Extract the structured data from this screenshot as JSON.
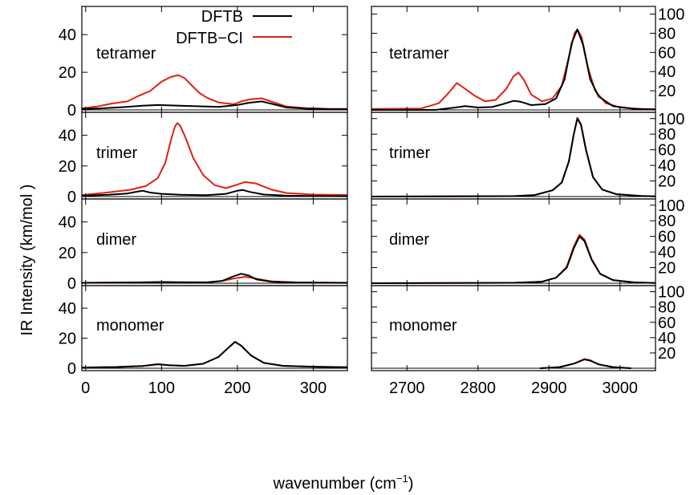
{
  "figure": {
    "ylabel": "IR  Intensity    (km/mol )",
    "xlabel": "wavenumber (cm",
    "xlabel_sup": "−1",
    "xlabel_close": ")"
  },
  "legend": {
    "placement": "top-left panel, top-right",
    "entries": [
      {
        "label": "DFTB",
        "color": "#000000"
      },
      {
        "label": "DFTB−CI",
        "color": "#dd2211"
      }
    ]
  },
  "chart_data": {
    "type": "line",
    "layout": "4 rows × 2 columns (shared x within column)",
    "series_names": [
      "DFTB",
      "DFTB−CI"
    ],
    "colors": {
      "DFTB": "#000000",
      "DFTB−CI": "#dd2211"
    },
    "left": {
      "xlim": [
        -5,
        345
      ],
      "xticks": [
        0,
        100,
        200,
        300
      ],
      "ylim": [
        0,
        55
      ],
      "yticks": [
        0,
        20,
        40
      ],
      "tick_side": "left"
    },
    "right": {
      "xlim": [
        2650,
        3050
      ],
      "xticks": [
        2700,
        2800,
        2900,
        3000
      ],
      "ylim": [
        0,
        108
      ],
      "yticks": [
        20,
        40,
        60,
        80,
        100
      ],
      "tick_side": "right"
    },
    "panels": [
      {
        "label": "tetramer",
        "left": {
          "DFTB": [
            [
              -5,
              0.5
            ],
            [
              20,
              0.8
            ],
            [
              50,
              1.5
            ],
            [
              75,
              2.2
            ],
            [
              95,
              2.6
            ],
            [
              120,
              2.3
            ],
            [
              150,
              1.9
            ],
            [
              175,
              1.6
            ],
            [
              200,
              2.6
            ],
            [
              215,
              3.8
            ],
            [
              232,
              4.5
            ],
            [
              248,
              3.0
            ],
            [
              265,
              1.3
            ],
            [
              290,
              0.7
            ],
            [
              320,
              0.4
            ],
            [
              345,
              0.3
            ]
          ],
          "DFTB−CI": [
            [
              -5,
              0.8
            ],
            [
              15,
              1.8
            ],
            [
              35,
              3.4
            ],
            [
              55,
              4.5
            ],
            [
              70,
              7.5
            ],
            [
              85,
              10.0
            ],
            [
              100,
              15.0
            ],
            [
              112,
              17.5
            ],
            [
              122,
              18.5
            ],
            [
              130,
              17.0
            ],
            [
              140,
              13.0
            ],
            [
              150,
              9.0
            ],
            [
              160,
              6.5
            ],
            [
              175,
              4.0
            ],
            [
              195,
              3.0
            ],
            [
              205,
              4.5
            ],
            [
              215,
              5.5
            ],
            [
              232,
              6.2
            ],
            [
              248,
              4.0
            ],
            [
              265,
              1.8
            ],
            [
              290,
              1.0
            ],
            [
              320,
              0.6
            ],
            [
              345,
              0.5
            ]
          ]
        },
        "right": {
          "DFTB": [
            [
              2650,
              0
            ],
            [
              2740,
              0
            ],
            [
              2768,
              2.5
            ],
            [
              2782,
              4.0
            ],
            [
              2800,
              2.5
            ],
            [
              2820,
              3.0
            ],
            [
              2835,
              6.0
            ],
            [
              2850,
              9.5
            ],
            [
              2860,
              8.5
            ],
            [
              2875,
              5.0
            ],
            [
              2895,
              6.0
            ],
            [
              2910,
              12.0
            ],
            [
              2922,
              32.0
            ],
            [
              2932,
              70.0
            ],
            [
              2940,
              84.0
            ],
            [
              2948,
              68.0
            ],
            [
              2958,
              32.0
            ],
            [
              2970,
              14.0
            ],
            [
              2990,
              4.0
            ],
            [
              3020,
              1.0
            ],
            [
              3050,
              0.3
            ]
          ],
          "DFTB−CI": [
            [
              2650,
              1.0
            ],
            [
              2720,
              1.5
            ],
            [
              2745,
              7.0
            ],
            [
              2760,
              19.0
            ],
            [
              2770,
              28.0
            ],
            [
              2782,
              22.0
            ],
            [
              2795,
              15.0
            ],
            [
              2810,
              9.0
            ],
            [
              2825,
              10.5
            ],
            [
              2840,
              22.0
            ],
            [
              2850,
              35.0
            ],
            [
              2857,
              39.0
            ],
            [
              2865,
              31.0
            ],
            [
              2875,
              16.0
            ],
            [
              2890,
              9.0
            ],
            [
              2905,
              12.0
            ],
            [
              2918,
              25.0
            ],
            [
              2928,
              55.0
            ],
            [
              2936,
              80.0
            ],
            [
              2940,
              84.0
            ],
            [
              2946,
              76.0
            ],
            [
              2955,
              44.0
            ],
            [
              2965,
              20.0
            ],
            [
              2980,
              7.0
            ],
            [
              3000,
              2.5
            ],
            [
              3030,
              1.0
            ],
            [
              3050,
              0.8
            ]
          ]
        }
      },
      {
        "label": "trimer",
        "left": {
          "DFTB": [
            [
              -5,
              0.5
            ],
            [
              30,
              1.2
            ],
            [
              55,
              2.0
            ],
            [
              68,
              3.2
            ],
            [
              75,
              3.8
            ],
            [
              85,
              2.6
            ],
            [
              100,
              1.8
            ],
            [
              125,
              1.2
            ],
            [
              160,
              0.9
            ],
            [
              185,
              1.8
            ],
            [
              200,
              3.8
            ],
            [
              207,
              4.3
            ],
            [
              217,
              3.0
            ],
            [
              235,
              1.3
            ],
            [
              265,
              0.6
            ],
            [
              300,
              0.3
            ],
            [
              345,
              0.2
            ]
          ],
          "DFTB−CI": [
            [
              -5,
              1.0
            ],
            [
              15,
              2.0
            ],
            [
              35,
              3.0
            ],
            [
              60,
              4.5
            ],
            [
              80,
              7.0
            ],
            [
              95,
              12.0
            ],
            [
              105,
              22.0
            ],
            [
              113,
              38.0
            ],
            [
              118,
              46.0
            ],
            [
              121,
              48.0
            ],
            [
              125,
              46.0
            ],
            [
              132,
              38.0
            ],
            [
              142,
              25.0
            ],
            [
              155,
              14.0
            ],
            [
              170,
              7.5
            ],
            [
              185,
              5.5
            ],
            [
              198,
              7.5
            ],
            [
              210,
              9.5
            ],
            [
              225,
              8.5
            ],
            [
              245,
              4.5
            ],
            [
              265,
              2.3
            ],
            [
              300,
              1.3
            ],
            [
              345,
              1.0
            ]
          ]
        },
        "right": {
          "DFTB": [
            [
              2650,
              0
            ],
            [
              2850,
              0.5
            ],
            [
              2880,
              2.0
            ],
            [
              2905,
              8.0
            ],
            [
              2918,
              18.0
            ],
            [
              2928,
              45.0
            ],
            [
              2935,
              80.0
            ],
            [
              2940,
              100.0
            ],
            [
              2945,
              92.0
            ],
            [
              2952,
              60.0
            ],
            [
              2962,
              25.0
            ],
            [
              2975,
              9.0
            ],
            [
              2995,
              3.0
            ],
            [
              3030,
              0.8
            ],
            [
              3050,
              0.3
            ]
          ],
          "DFTB−CI": [
            [
              2650,
              0
            ],
            [
              2850,
              0.5
            ],
            [
              2880,
              2.0
            ],
            [
              2905,
              8.0
            ],
            [
              2918,
              18.0
            ],
            [
              2928,
              45.0
            ],
            [
              2935,
              80.0
            ],
            [
              2940,
              101.0
            ],
            [
              2945,
              93.0
            ],
            [
              2952,
              61.0
            ],
            [
              2962,
              25.0
            ],
            [
              2975,
              9.0
            ],
            [
              2995,
              3.0
            ],
            [
              3030,
              0.8
            ],
            [
              3050,
              0.3
            ]
          ]
        }
      },
      {
        "label": "dimer",
        "left": {
          "DFTB": [
            [
              -5,
              0.2
            ],
            [
              50,
              0.4
            ],
            [
              85,
              0.7
            ],
            [
              100,
              0.8
            ],
            [
              120,
              0.6
            ],
            [
              160,
              0.5
            ],
            [
              180,
              1.5
            ],
            [
              195,
              4.5
            ],
            [
              205,
              6.2
            ],
            [
              215,
              5.0
            ],
            [
              225,
              2.5
            ],
            [
              245,
              1.0
            ],
            [
              280,
              0.4
            ],
            [
              345,
              0.2
            ]
          ],
          "DFTB−CI": [
            [
              -5,
              0.3
            ],
            [
              50,
              0.5
            ],
            [
              85,
              0.6
            ],
            [
              100,
              0.8
            ],
            [
              120,
              0.7
            ],
            [
              160,
              0.6
            ],
            [
              180,
              1.5
            ],
            [
              195,
              3.0
            ],
            [
              210,
              4.2
            ],
            [
              225,
              3.0
            ],
            [
              245,
              1.2
            ],
            [
              280,
              0.5
            ],
            [
              345,
              0.3
            ]
          ]
        },
        "right": {
          "DFTB": [
            [
              2650,
              0
            ],
            [
              2850,
              0.5
            ],
            [
              2890,
              2.0
            ],
            [
              2910,
              7.0
            ],
            [
              2925,
              20.0
            ],
            [
              2935,
              45.0
            ],
            [
              2943,
              60.0
            ],
            [
              2950,
              54.0
            ],
            [
              2960,
              30.0
            ],
            [
              2972,
              12.0
            ],
            [
              2990,
              4.0
            ],
            [
              3020,
              1.0
            ],
            [
              3050,
              0.3
            ]
          ],
          "DFTB−CI": [
            [
              2650,
              0
            ],
            [
              2850,
              0.5
            ],
            [
              2890,
              2.0
            ],
            [
              2910,
              7.0
            ],
            [
              2925,
              21.0
            ],
            [
              2935,
              47.0
            ],
            [
              2943,
              62.0
            ],
            [
              2950,
              56.0
            ],
            [
              2960,
              31.0
            ],
            [
              2972,
              12.0
            ],
            [
              2990,
              4.0
            ],
            [
              3020,
              1.0
            ],
            [
              3050,
              0.3
            ]
          ]
        }
      },
      {
        "label": "monomer",
        "left": {
          "DFTB": [
            [
              -5,
              0.5
            ],
            [
              40,
              0.8
            ],
            [
              75,
              1.5
            ],
            [
              95,
              2.6
            ],
            [
              110,
              2.0
            ],
            [
              130,
              1.6
            ],
            [
              155,
              3.0
            ],
            [
              175,
              7.5
            ],
            [
              190,
              14.5
            ],
            [
              197,
              17.5
            ],
            [
              205,
              15.0
            ],
            [
              218,
              8.5
            ],
            [
              235,
              3.5
            ],
            [
              260,
              1.6
            ],
            [
              300,
              1.0
            ],
            [
              345,
              0.7
            ]
          ],
          "DFTB−CI": [
            [
              -5,
              0.5
            ],
            [
              40,
              0.8
            ],
            [
              75,
              1.5
            ],
            [
              95,
              2.8
            ],
            [
              110,
              2.0
            ],
            [
              130,
              1.6
            ],
            [
              155,
              3.0
            ],
            [
              175,
              7.5
            ],
            [
              190,
              14.5
            ],
            [
              197,
              17.7
            ],
            [
              205,
              15.0
            ],
            [
              218,
              8.5
            ],
            [
              235,
              3.5
            ],
            [
              260,
              1.6
            ],
            [
              300,
              1.0
            ],
            [
              345,
              0.7
            ]
          ]
        },
        "right": {
          "DFTB": [
            [
              2888,
              0
            ],
            [
              2915,
              1.5
            ],
            [
              2935,
              6.0
            ],
            [
              2950,
              11.5
            ],
            [
              2958,
              10.0
            ],
            [
              2970,
              5.0
            ],
            [
              2990,
              1.5
            ],
            [
              3015,
              0
            ]
          ],
          "DFTB−CI": [
            [
              2888,
              0
            ],
            [
              2915,
              1.5
            ],
            [
              2935,
              6.0
            ],
            [
              2950,
              12.0
            ],
            [
              2958,
              10.5
            ],
            [
              2970,
              5.0
            ],
            [
              2990,
              1.5
            ],
            [
              3015,
              0
            ]
          ]
        }
      }
    ]
  }
}
